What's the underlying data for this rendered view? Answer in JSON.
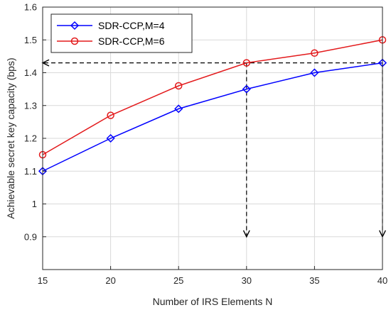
{
  "chart_data": {
    "type": "line",
    "xlabel": "Number of IRS Elements N",
    "ylabel": "Achievable secret key capacity (bps)",
    "x": [
      15,
      20,
      25,
      30,
      35,
      40
    ],
    "xlim": [
      15,
      40
    ],
    "ylim": [
      0.8,
      1.6
    ],
    "xticks": [
      "15",
      "20",
      "25",
      "30",
      "35",
      "40"
    ],
    "yticks": [
      "0.9",
      "1",
      "1.1",
      "1.2",
      "1.3",
      "1.4",
      "1.5",
      "1.6"
    ],
    "grid": true,
    "legend_position": "top-left",
    "series": [
      {
        "name": "SDR-CCP,M=4",
        "values": [
          1.1,
          1.2,
          1.29,
          1.35,
          1.4,
          1.43
        ],
        "color": "#0000ff",
        "marker": "diamond"
      },
      {
        "name": "SDR-CCP,M=6",
        "values": [
          1.15,
          1.27,
          1.36,
          1.43,
          1.46,
          1.5
        ],
        "color": "#e31a1c",
        "marker": "circle"
      }
    ],
    "annotations": [
      {
        "type": "dashed-arrow",
        "from": [
          40,
          1.43
        ],
        "to": [
          15,
          1.43
        ]
      },
      {
        "type": "dashed-arrow",
        "from": [
          30,
          1.43
        ],
        "to": [
          30,
          0.9
        ]
      },
      {
        "type": "dashed-arrow",
        "from": [
          40,
          1.43
        ],
        "to": [
          40,
          0.9
        ]
      }
    ]
  }
}
